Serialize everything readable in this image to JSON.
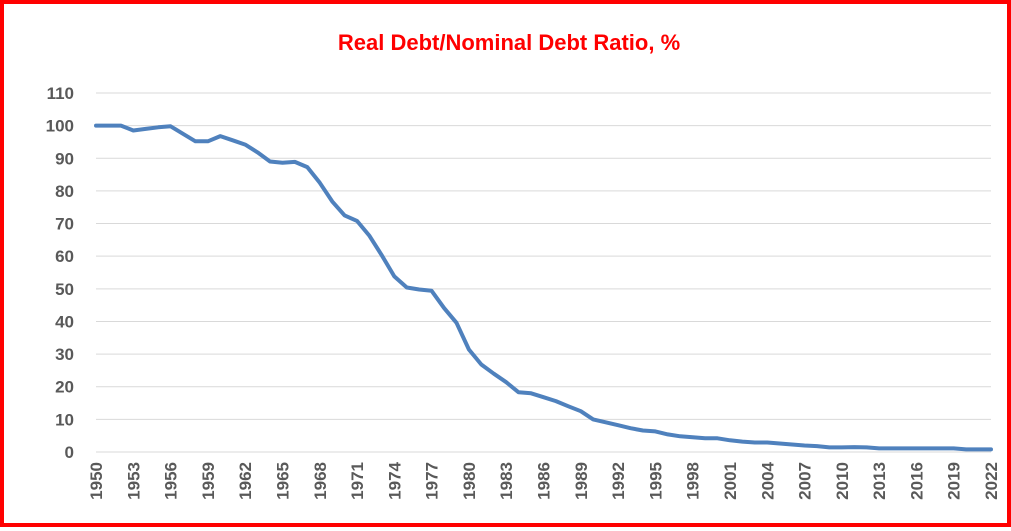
{
  "chart_data": {
    "type": "line",
    "title": "Real Debt/Nominal Debt Ratio, %",
    "xlabel": "",
    "ylabel": "",
    "ylim": [
      0,
      110
    ],
    "y_ticks": [
      "0",
      "10",
      "20",
      "30",
      "40",
      "50",
      "60",
      "70",
      "80",
      "90",
      "100",
      "110"
    ],
    "x_tick_labels": [
      "1950",
      "1953",
      "1956",
      "1959",
      "1962",
      "1965",
      "1968",
      "1971",
      "1974",
      "1977",
      "1980",
      "1983",
      "1986",
      "1989",
      "1992",
      "1995",
      "1998",
      "2001",
      "2004",
      "2007",
      "2010",
      "2013",
      "2016",
      "2019",
      "2022"
    ],
    "grid": true,
    "legend": "none",
    "colors": {
      "line": "#4f81bd",
      "title": "#ff0000",
      "border": "#ff0000",
      "grid": "#d9d9d9",
      "tick_text": "#595959"
    },
    "series": [
      {
        "x": [
          1950,
          1951,
          1952,
          1953,
          1954,
          1955,
          1956,
          1957,
          1958,
          1959,
          1960,
          1961,
          1962,
          1963,
          1964,
          1965,
          1966,
          1967,
          1968,
          1969,
          1970,
          1971,
          1972,
          1973,
          1974,
          1975,
          1976,
          1977,
          1978,
          1979,
          1980,
          1981,
          1982,
          1983,
          1984,
          1985,
          1986,
          1987,
          1988,
          1989,
          1990,
          1991,
          1992,
          1993,
          1994,
          1995,
          1996,
          1997,
          1998,
          1999,
          2000,
          2001,
          2002,
          2003,
          2004,
          2005,
          2006,
          2007,
          2008,
          2009,
          2010,
          2011,
          2012,
          2013,
          2014,
          2015,
          2016,
          2017,
          2018,
          2019,
          2020,
          2021,
          2022
        ],
        "values": [
          100,
          100,
          100,
          98.5,
          99,
          99.5,
          99.8,
          97.5,
          95.2,
          95.2,
          96.8,
          95.5,
          94.2,
          91.8,
          89,
          88.6,
          88.9,
          87.3,
          82.5,
          76.8,
          72.5,
          70.8,
          66.2,
          60.2,
          53.8,
          50.4,
          49.8,
          49.4,
          44.1,
          39.6,
          31.4,
          26.8,
          24,
          21.4,
          18.3,
          18,
          16.8,
          15.6,
          14,
          12.5,
          10,
          9.1,
          8.2,
          7.3,
          6.6,
          6.3,
          5.4,
          4.8,
          4.5,
          4.2,
          4.2,
          3.6,
          3.2,
          2.9,
          2.9,
          2.6,
          2.3,
          2,
          1.8,
          1.4,
          1.4,
          1.5,
          1.4,
          1.1,
          1.1,
          1.1,
          1.1,
          1.1,
          1.1,
          1.1,
          0.8,
          0.8,
          0.8
        ]
      }
    ]
  }
}
